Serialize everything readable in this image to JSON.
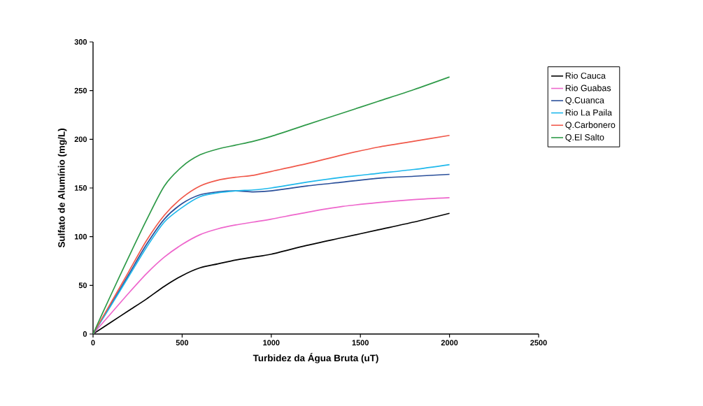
{
  "chart_data": {
    "type": "line",
    "xlabel": "Turbidez da Água Bruta (uT)",
    "ylabel": "Sulfato de Alumínio (mg/L)",
    "x": [
      0,
      100,
      200,
      300,
      400,
      500,
      600,
      700,
      800,
      900,
      1000,
      1200,
      1400,
      1600,
      1800,
      2000
    ],
    "xlim": [
      0,
      2500
    ],
    "xticks": [
      0,
      500,
      1000,
      1500,
      2000,
      2500
    ],
    "ylim": [
      0,
      300
    ],
    "yticks": [
      0,
      50,
      100,
      150,
      200,
      250,
      300
    ],
    "grid": false,
    "legend": "right",
    "marker": "none",
    "line_style": "solid",
    "series": [
      {
        "name": "Rio Cauca",
        "color": "#000000",
        "values": [
          0,
          12,
          24,
          36,
          49,
          60,
          68,
          72,
          76,
          79,
          82,
          91,
          99,
          107,
          115,
          124
        ]
      },
      {
        "name": "Rio Guabas",
        "color": "#ee66cc",
        "values": [
          0,
          21,
          42,
          62,
          79,
          92,
          102,
          108,
          112,
          115,
          118,
          125,
          131,
          135,
          138,
          140
        ]
      },
      {
        "name": "Q.Cuanca",
        "color": "#2a4f9a",
        "values": [
          0,
          30,
          61,
          92,
          118,
          134,
          143,
          146,
          147,
          146,
          147,
          152,
          156,
          160,
          162,
          164
        ]
      },
      {
        "name": "Rio La Paila",
        "color": "#1eb8ec",
        "values": [
          0,
          29,
          59,
          89,
          115,
          130,
          141,
          145,
          147,
          148,
          150,
          156,
          161,
          165,
          169,
          174
        ]
      },
      {
        "name": "Q.Carbonero",
        "color": "#f0584a",
        "values": [
          0,
          32,
          64,
          96,
          122,
          140,
          152,
          158,
          161,
          163,
          167,
          175,
          184,
          192,
          198,
          204
        ]
      },
      {
        "name": "Q.El Salto",
        "color": "#2e9a48",
        "values": [
          0,
          40,
          79,
          117,
          152,
          172,
          184,
          190,
          194,
          198,
          203,
          215,
          227,
          239,
          251,
          264
        ]
      }
    ]
  }
}
